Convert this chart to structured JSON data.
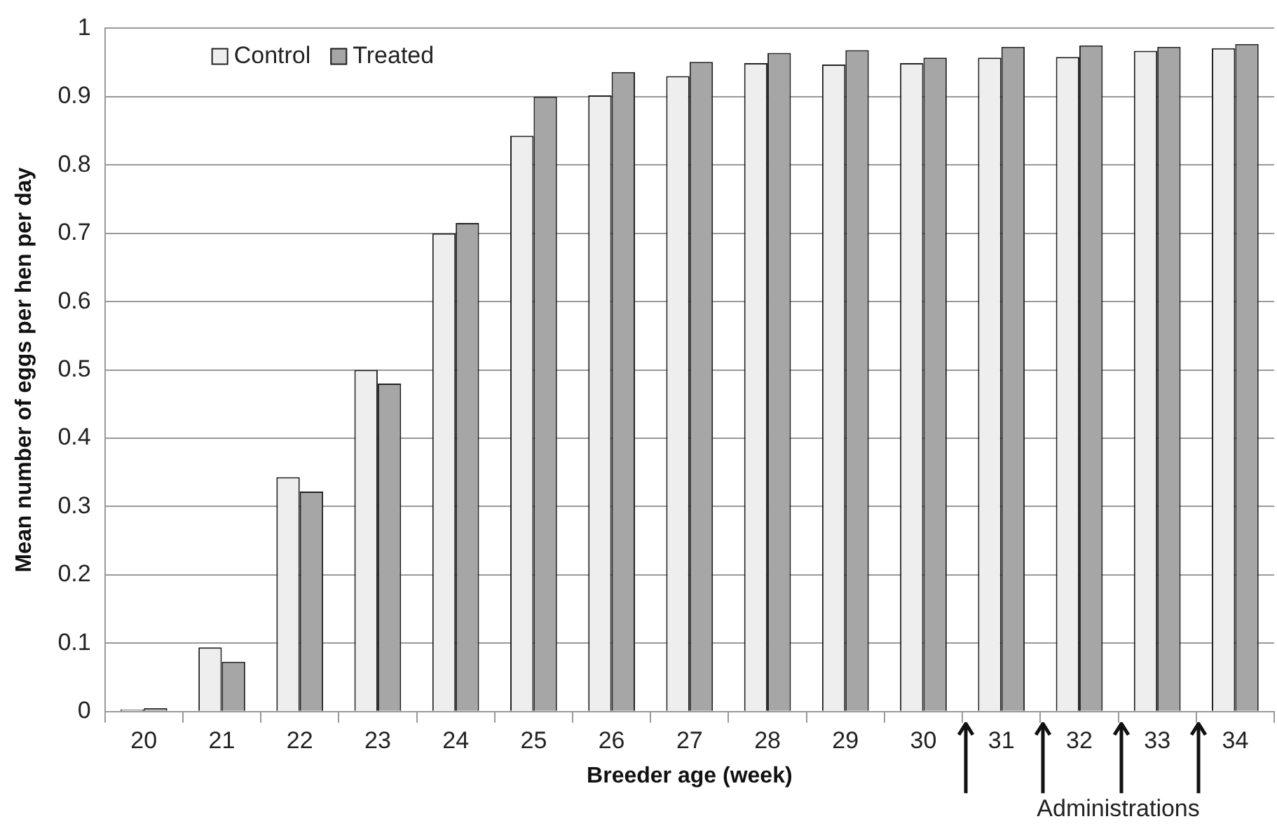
{
  "chart_data": {
    "type": "bar",
    "xlabel": "Breeder age (week)",
    "ylabel": "Mean number of eggs per hen per day",
    "categories": [
      "20",
      "21",
      "22",
      "23",
      "24",
      "25",
      "26",
      "27",
      "28",
      "29",
      "30",
      "31",
      "32",
      "33",
      "34"
    ],
    "series": [
      {
        "name": "Control",
        "color": "#eeeeee",
        "values": [
          0.003,
          0.094,
          0.343,
          0.5,
          0.7,
          0.843,
          0.902,
          0.93,
          0.949,
          0.947,
          0.949,
          0.957,
          0.958,
          0.967,
          0.971
        ]
      },
      {
        "name": "Treated",
        "color": "#a6a6a6",
        "values": [
          0.005,
          0.073,
          0.322,
          0.48,
          0.715,
          0.9,
          0.936,
          0.951,
          0.964,
          0.968,
          0.957,
          0.973,
          0.975,
          0.973,
          0.977
        ]
      }
    ],
    "ylim": [
      0,
      1
    ],
    "yticks": [
      0,
      0.1,
      0.2,
      0.3,
      0.4,
      0.5,
      0.6,
      0.7,
      0.8,
      0.9,
      1
    ],
    "grid": "y",
    "legend": "top left",
    "annotations": [
      "Administrations"
    ]
  }
}
